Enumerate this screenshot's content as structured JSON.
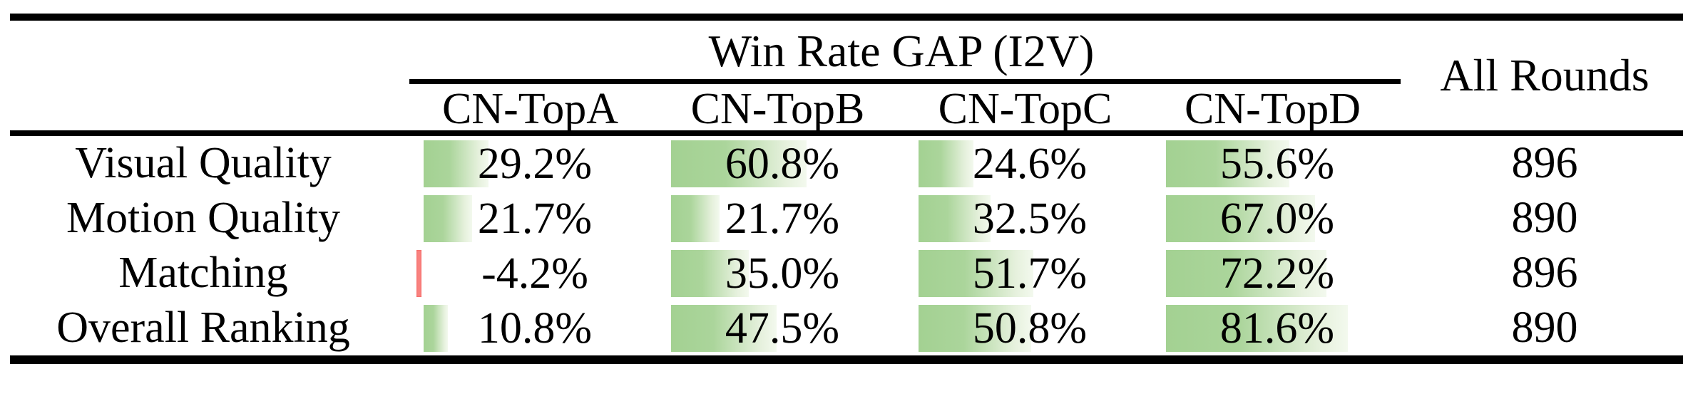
{
  "chart_data": {
    "type": "table",
    "title": "Win Rate GAP (I2V)",
    "extra_column": "All Rounds",
    "columns": [
      "CN-TopA",
      "CN-TopB",
      "CN-TopC",
      "CN-TopD"
    ],
    "rows": [
      {
        "metric": "Visual Quality",
        "values": [
          29.2,
          60.8,
          24.6,
          55.6
        ],
        "all_rounds": "896"
      },
      {
        "metric": "Motion Quality",
        "values": [
          21.7,
          21.7,
          32.5,
          67.0
        ],
        "all_rounds": "890"
      },
      {
        "metric": "Matching",
        "values": [
          -4.2,
          35.0,
          51.7,
          72.2
        ],
        "all_rounds": "896"
      },
      {
        "metric": "Overall Ranking",
        "values": [
          10.8,
          47.5,
          50.8,
          81.6
        ],
        "all_rounds": "890"
      }
    ],
    "value_suffix": "%",
    "bar_scale_max": 100,
    "colors": {
      "positive_bar": "#a3d192",
      "positive_bar_fade": "#f3f9ee",
      "negative_bar": "#f9827f",
      "rule": "#000000",
      "text": "#000000"
    }
  }
}
